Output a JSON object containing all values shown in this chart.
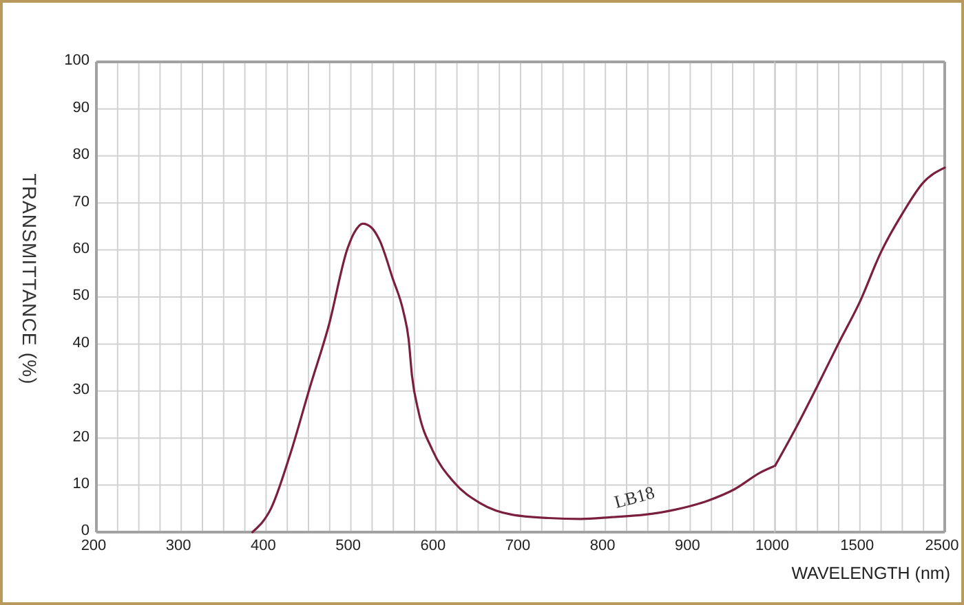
{
  "chart_data": [
    {
      "type": "line",
      "ylabel": "TRANSMITTANCE (%)",
      "xlim": [
        200,
        1000
      ],
      "ylim": [
        0,
        100
      ],
      "xticks": [
        200,
        {
          "value": 225,
          "label": null
        },
        {
          "value": 250,
          "label": null
        },
        {
          "value": 275,
          "label": null
        },
        300,
        {
          "value": 325,
          "label": null
        },
        {
          "value": 350,
          "label": null
        },
        {
          "value": 375,
          "label": null
        },
        400,
        {
          "value": 425,
          "label": null
        },
        {
          "value": 450,
          "label": null
        },
        {
          "value": 475,
          "label": null
        },
        500,
        {
          "value": 525,
          "label": null
        },
        {
          "value": 550,
          "label": null
        },
        {
          "value": 575,
          "label": null
        },
        600,
        {
          "value": 625,
          "label": null
        },
        {
          "value": 650,
          "label": null
        },
        {
          "value": 675,
          "label": null
        },
        700,
        {
          "value": 725,
          "label": null
        },
        {
          "value": 750,
          "label": null
        },
        {
          "value": 775,
          "label": null
        },
        800,
        {
          "value": 825,
          "label": null
        },
        {
          "value": 850,
          "label": null
        },
        {
          "value": 875,
          "label": null
        },
        900,
        {
          "value": 925,
          "label": null
        },
        {
          "value": 950,
          "label": null
        },
        {
          "value": 975,
          "label": null
        },
        {
          "value": 1000,
          "label": null
        }
      ],
      "yticks": [
        0,
        10,
        20,
        30,
        40,
        50,
        60,
        70,
        80,
        90,
        100
      ],
      "grid": true,
      "series": [
        {
          "name": "LB18",
          "color": "#7a1f3d",
          "x": [
            384,
            406,
            428,
            452,
            474,
            496,
            504,
            514,
            524,
            534,
            549,
            562,
            568,
            572,
            580,
            596,
            621,
            652,
            690,
            733,
            771,
            808,
            846,
            883,
            921,
            952,
            983,
            1000
          ],
          "values": [
            0,
            5.1,
            16.3,
            31,
            44,
            60.3,
            63.7,
            65.6,
            64.8,
            62,
            54.1,
            46.8,
            41.1,
            33.3,
            25.4,
            17.5,
            10.7,
            6.2,
            3.7,
            3,
            2.8,
            3.2,
            3.7,
            4.8,
            6.7,
            9.1,
            12.7,
            14.1
          ]
        }
      ]
    },
    {
      "type": "line",
      "xlabel": "WAVELENGTH (nm)",
      "categories": [
        "1000",
        null,
        null,
        null,
        "1500",
        null,
        null,
        null,
        "2500"
      ],
      "ylim": [
        0,
        100
      ],
      "yticks": [
        0,
        10,
        20,
        30,
        40,
        50,
        60,
        70,
        80,
        90,
        100
      ],
      "grid": true,
      "tick_labels": "x",
      "series": [
        {
          "color": "#7a1f3d",
          "values": [
            14.1,
            22.3,
            31.1,
            40.2,
            49,
            59.6,
            67.7,
            74.4,
            77.5
          ]
        }
      ]
    }
  ]
}
